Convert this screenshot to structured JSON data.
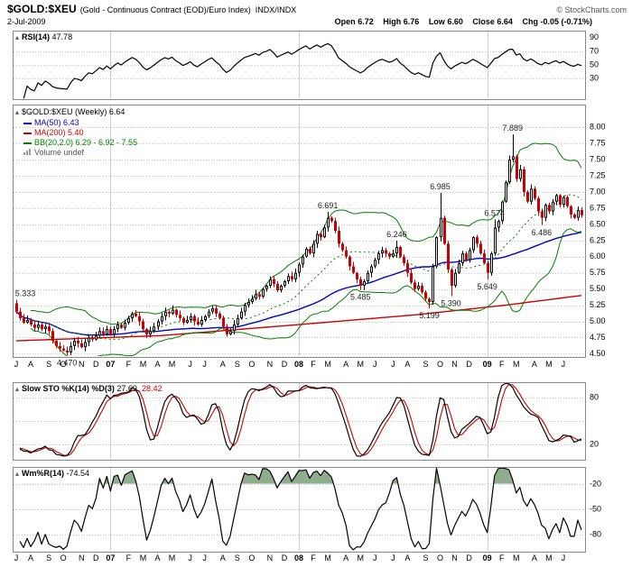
{
  "header": {
    "symbol": "$GOLD:$XEU",
    "description": "(Gold - Continuous Contract (EOD)/Euro Index)",
    "exchange": "INDX/INDX",
    "copyright": "© StockCharts.com",
    "date": "2-Jul-2009",
    "quote": {
      "open_label": "Open",
      "open": "6.72",
      "high_label": "High",
      "high": "6.76",
      "low_label": "Low",
      "low": "6.60",
      "close_label": "Close",
      "close": "6.64",
      "chg_label": "Chg",
      "chg": "-0.05 (-0.71%)"
    }
  },
  "panels": {
    "rsi": {
      "label": "RSI(14)",
      "value": "47.78"
    },
    "main": {
      "legend_symbol": "$GOLD:$XEU (Weekly) 6.64",
      "ma50_label": "MA(50) 6.43",
      "ma200_label": "MA(200) 5.40",
      "bb_label": "BB(20,2.0) 6.29 - 6.92 - 7.55",
      "volume_label": "Volume undef"
    },
    "sto": {
      "label": "Slow STO %K(14) %D(3)",
      "k_value": "27.69,",
      "d_value": "28.42"
    },
    "wmr": {
      "label": "Wm%R(14)",
      "value": "-74.54"
    }
  },
  "colors": {
    "up": "#000000",
    "up_fill": "#ffffff",
    "down": "#cc0000",
    "ma50": "#0000cc",
    "ma200": "#cc0000",
    "bb": "#008000",
    "sto_k": "#000000",
    "sto_d": "#cc0000",
    "wmr_line": "#000000",
    "wmr_fill": "#8fac8f",
    "grid": "#c8c8c8",
    "year_line": "#cccccc",
    "panel_border": "#888888",
    "text": "#000000",
    "annotation": "#222222"
  },
  "chart_data": {
    "type": "candlestick-with-indicators",
    "timeframe": "Weekly",
    "x_ticks": {
      "labels": [
        "J",
        "A",
        "S",
        "O",
        "N",
        "D",
        "07",
        "F",
        "M",
        "A",
        "M",
        "J",
        "J",
        "A",
        "S",
        "O",
        "N",
        "D",
        "08",
        "F",
        "M",
        "A",
        "M",
        "J",
        "J",
        "A",
        "S",
        "O",
        "N",
        "D",
        "09",
        "F",
        "M",
        "A",
        "M",
        "J"
      ],
      "weeks": [
        0,
        4,
        9,
        13,
        18,
        22,
        26,
        31,
        35,
        39,
        43,
        48,
        52,
        57,
        61,
        65,
        70,
        74,
        78,
        82,
        86,
        91,
        95,
        99,
        104,
        108,
        113,
        117,
        121,
        125,
        130,
        134,
        138,
        143,
        147,
        151
      ]
    },
    "year_weeks": [
      26,
      78,
      130
    ],
    "main": {
      "y_ticks": [
        8.0,
        7.75,
        7.5,
        7.25,
        7.0,
        6.75,
        6.5,
        6.25,
        6.0,
        5.75,
        5.5,
        5.25,
        5.0,
        4.75,
        4.5
      ],
      "range": [
        4.45,
        8.35
      ],
      "first_open": 5.28,
      "closes": [
        5.15,
        5.05,
        4.98,
        5.02,
        4.95,
        4.9,
        4.95,
        4.88,
        4.92,
        4.85,
        4.7,
        4.62,
        4.58,
        4.55,
        4.52,
        4.62,
        4.7,
        4.66,
        4.6,
        4.68,
        4.75,
        4.72,
        4.78,
        4.85,
        4.8,
        4.88,
        4.8,
        4.88,
        4.95,
        4.9,
        4.98,
        5.05,
        5.12,
        5.08,
        5.0,
        4.88,
        4.8,
        4.85,
        4.92,
        5.0,
        5.08,
        5.15,
        5.12,
        5.18,
        5.1,
        5.05,
        4.98,
        5.02,
        5.08,
        5.0,
        4.95,
        5.02,
        5.08,
        5.15,
        5.2,
        5.12,
        5.05,
        4.92,
        4.8,
        4.85,
        4.95,
        5.05,
        5.15,
        5.25,
        5.3,
        5.35,
        5.42,
        5.38,
        5.5,
        5.55,
        5.65,
        5.58,
        5.48,
        5.55,
        5.62,
        5.7,
        5.65,
        5.75,
        5.88,
        6.0,
        6.12,
        6.05,
        6.2,
        6.35,
        6.3,
        6.45,
        6.6,
        6.55,
        6.4,
        6.2,
        6.1,
        6.0,
        5.85,
        5.75,
        5.65,
        5.55,
        5.62,
        5.75,
        5.85,
        5.95,
        6.05,
        6.1,
        6.05,
        6.0,
        6.05,
        6.15,
        6.0,
        5.9,
        5.75,
        5.6,
        5.5,
        5.55,
        5.45,
        5.35,
        5.3,
        5.85,
        6.3,
        6.6,
        6.2,
        5.8,
        5.55,
        5.75,
        5.9,
        6.05,
        5.95,
        6.1,
        6.3,
        6.2,
        6.05,
        5.9,
        5.75,
        6.05,
        6.45,
        6.55,
        6.85,
        7.15,
        7.5,
        7.55,
        7.2,
        7.35,
        7.0,
        6.85,
        7.05,
        6.9,
        6.7,
        6.6,
        6.8,
        6.7,
        6.85,
        6.95,
        6.8,
        6.92,
        6.78,
        6.65,
        6.6,
        6.72,
        6.64
      ],
      "wick_overrides": {
        "0": {
          "high": 5.333
        },
        "14": {
          "low": 4.47
        },
        "86": {
          "high": 6.691
        },
        "95": {
          "low": 5.485
        },
        "105": {
          "high": 6.246
        },
        "114": {
          "low": 5.199
        },
        "117": {
          "high": 6.985
        },
        "120": {
          "low": 5.39
        },
        "130": {
          "low": 5.649
        },
        "132": {
          "high": 6.574
        },
        "137": {
          "high": 7.889
        },
        "145": {
          "low": 6.486
        },
        "156": {
          "high": 6.76,
          "low": 6.6
        }
      },
      "ma200_anchors": [
        [
          0,
          4.7
        ],
        [
          40,
          4.78
        ],
        [
          78,
          4.95
        ],
        [
          110,
          5.1
        ],
        [
          135,
          5.25
        ],
        [
          156,
          5.4
        ]
      ],
      "annotations": [
        {
          "week": 0,
          "price": 5.333,
          "text": "5.333",
          "pos": "above"
        },
        {
          "week": 14,
          "price": 4.47,
          "text": "4.470",
          "pos": "below"
        },
        {
          "week": 86,
          "price": 6.691,
          "text": "6.691",
          "pos": "above"
        },
        {
          "week": 95,
          "price": 5.485,
          "text": "5.485",
          "pos": "below"
        },
        {
          "week": 105,
          "price": 6.246,
          "text": "6.246",
          "pos": "above"
        },
        {
          "week": 114,
          "price": 5.199,
          "text": "5.199",
          "pos": "below"
        },
        {
          "week": 117,
          "price": 6.985,
          "text": "6.985",
          "pos": "above"
        },
        {
          "week": 120,
          "price": 5.39,
          "text": "5.390",
          "pos": "below"
        },
        {
          "week": 130,
          "price": 5.649,
          "text": "5.649",
          "pos": "below"
        },
        {
          "week": 132,
          "price": 6.574,
          "text": "6.574",
          "pos": "above"
        },
        {
          "week": 137,
          "price": 7.889,
          "text": "7.889",
          "pos": "above"
        },
        {
          "week": 145,
          "price": 6.486,
          "text": "6.486",
          "pos": "below"
        }
      ],
      "overlays": {
        "ma50_period": 50,
        "bb_period": 20,
        "bb_mult": 2
      }
    },
    "rsi": {
      "period": 14,
      "range": [
        0,
        100
      ],
      "gridlines": [
        30,
        50,
        70
      ],
      "labels": [
        90,
        70,
        50,
        30
      ],
      "last": 47.78
    },
    "sto": {
      "k_period": 14,
      "slowing": 3,
      "d_period": 3,
      "range": [
        0,
        100
      ],
      "gridlines": [
        20,
        50,
        80
      ],
      "labels": [
        80,
        20
      ],
      "last_k": 27.69,
      "last_d": 28.42
    },
    "wmr": {
      "period": 14,
      "range": [
        -100,
        0
      ],
      "gridlines": [
        -20,
        -50,
        -80
      ],
      "labels": [
        -20,
        -50,
        -80
      ],
      "overbought_level": -20,
      "last": -74.54
    }
  }
}
